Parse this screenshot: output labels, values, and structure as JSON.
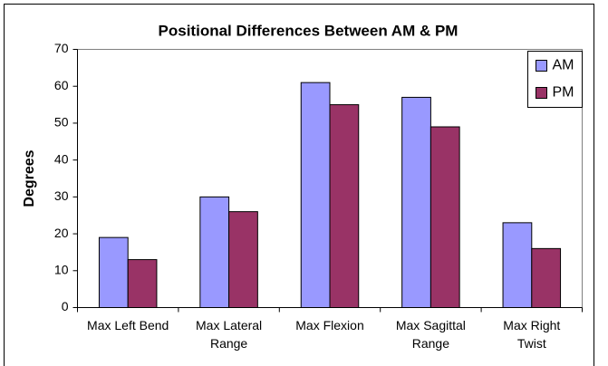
{
  "chart_data": {
    "type": "bar",
    "title": "Positional Differences Between AM & PM",
    "y_label": "Degrees",
    "categories": [
      "Max Left Bend",
      "Max Lateral Range",
      "Max Flexion",
      "Max Sagittal Range",
      "Max Right Twist"
    ],
    "series": [
      {
        "name": "AM",
        "color": "#9999ff",
        "values": [
          19,
          30,
          61,
          57,
          23
        ]
      },
      {
        "name": "PM",
        "color": "#993366",
        "values": [
          13,
          26,
          55,
          49,
          16
        ]
      }
    ],
    "ylim": [
      0,
      70
    ],
    "yticks": [
      0,
      10,
      20,
      30,
      40,
      50,
      60,
      70
    ],
    "grid": false,
    "legend": "top-right"
  }
}
